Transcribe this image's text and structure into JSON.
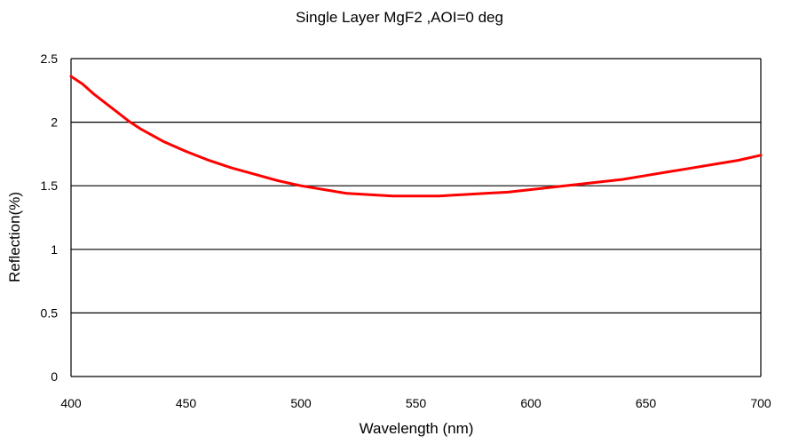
{
  "chart_data": {
    "type": "line",
    "title": "Single Layer MgF2 ,AOI=0 deg",
    "xlabel": "Wavelength (nm)",
    "ylabel": "Reflection(%)",
    "xlim": [
      400,
      700
    ],
    "ylim": [
      0,
      2.5
    ],
    "x_ticks": [
      "400",
      "450",
      "500",
      "550",
      "600",
      "650",
      "700"
    ],
    "y_ticks": [
      "0",
      "0.5",
      "1",
      "1.5",
      "2",
      "2.5"
    ],
    "grid": "horizontal",
    "series": [
      {
        "color": "#ff0000",
        "x": [
          400,
          405,
          410,
          415,
          420,
          425,
          430,
          440,
          450,
          460,
          470,
          480,
          490,
          500,
          510,
          520,
          530,
          540,
          550,
          560,
          570,
          580,
          590,
          600,
          610,
          620,
          630,
          640,
          650,
          660,
          670,
          680,
          690,
          700
        ],
        "y": [
          2.36,
          2.3,
          2.22,
          2.15,
          2.08,
          2.01,
          1.95,
          1.85,
          1.77,
          1.7,
          1.64,
          1.59,
          1.54,
          1.5,
          1.47,
          1.44,
          1.43,
          1.42,
          1.42,
          1.42,
          1.43,
          1.44,
          1.45,
          1.47,
          1.49,
          1.51,
          1.53,
          1.55,
          1.58,
          1.61,
          1.64,
          1.67,
          1.7,
          1.74
        ]
      }
    ]
  }
}
